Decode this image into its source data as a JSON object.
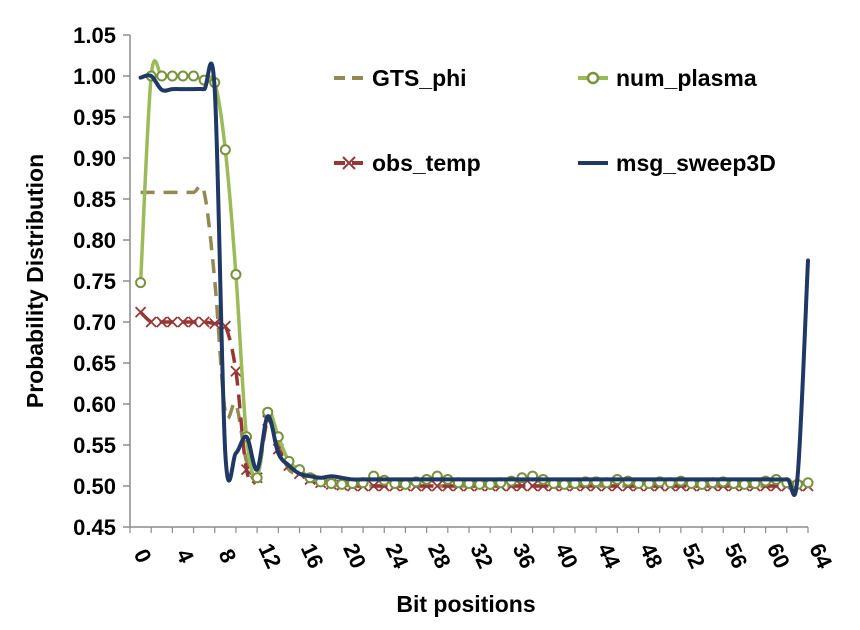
{
  "chart_data": {
    "type": "line",
    "title": "",
    "xlabel": "Bit positions",
    "ylabel": "Probability Distribution",
    "xlim": [
      0,
      64
    ],
    "ylim": [
      0.45,
      1.05
    ],
    "x_ticks": [
      "0",
      "4",
      "8",
      "12",
      "16",
      "20",
      "24",
      "28",
      "32",
      "36",
      "40",
      "44",
      "48",
      "52",
      "56",
      "60",
      "64"
    ],
    "y_ticks": [
      "0.45",
      "0.50",
      "0.55",
      "0.60",
      "0.65",
      "0.70",
      "0.75",
      "0.80",
      "0.85",
      "0.90",
      "0.95",
      "1.00",
      "1.05"
    ],
    "grid": false,
    "legend_position": "top-right",
    "series": [
      {
        "name": "GTS_phi",
        "color": "#938953",
        "style": "dashed",
        "marker": "none",
        "points": [
          [
            1,
            0.858
          ],
          [
            2,
            0.858
          ],
          [
            3,
            0.858
          ],
          [
            4,
            0.858
          ],
          [
            5,
            0.858
          ],
          [
            6,
            0.858
          ],
          [
            7,
            0.858
          ],
          [
            8,
            0.75
          ],
          [
            9,
            0.59
          ],
          [
            10,
            0.6
          ],
          [
            11,
            0.53
          ],
          [
            12,
            0.51
          ],
          [
            13,
            0.58
          ],
          [
            14,
            0.55
          ],
          [
            15,
            0.52
          ],
          [
            16,
            0.515
          ],
          [
            17,
            0.51
          ],
          [
            18,
            0.505
          ],
          [
            19,
            0.502
          ],
          [
            20,
            0.501
          ],
          [
            22,
            0.5
          ],
          [
            24,
            0.5
          ],
          [
            28,
            0.5
          ],
          [
            32,
            0.5
          ],
          [
            36,
            0.5
          ],
          [
            40,
            0.5
          ],
          [
            44,
            0.5
          ],
          [
            48,
            0.5
          ],
          [
            52,
            0.5
          ],
          [
            56,
            0.5
          ],
          [
            60,
            0.5
          ],
          [
            63,
            0.5
          ],
          [
            64,
            0.5
          ]
        ]
      },
      {
        "name": "num_plasma",
        "color": "#9BBB59",
        "style": "solid",
        "marker": "circle",
        "points": [
          [
            1,
            0.748
          ],
          [
            2,
            1.0
          ],
          [
            3,
            1.0
          ],
          [
            4,
            1.0
          ],
          [
            5,
            1.0
          ],
          [
            6,
            1.0
          ],
          [
            7,
            0.995
          ],
          [
            8,
            0.992
          ],
          [
            9,
            0.91
          ],
          [
            10,
            0.758
          ],
          [
            11,
            0.56
          ],
          [
            12,
            0.51
          ],
          [
            13,
            0.59
          ],
          [
            14,
            0.56
          ],
          [
            15,
            0.53
          ],
          [
            16,
            0.52
          ],
          [
            17,
            0.51
          ],
          [
            18,
            0.505
          ],
          [
            19,
            0.503
          ],
          [
            20,
            0.502
          ],
          [
            21,
            0.503
          ],
          [
            22,
            0.504
          ],
          [
            23,
            0.512
          ],
          [
            24,
            0.507
          ],
          [
            25,
            0.503
          ],
          [
            26,
            0.502
          ],
          [
            27,
            0.505
          ],
          [
            28,
            0.508
          ],
          [
            29,
            0.512
          ],
          [
            30,
            0.508
          ],
          [
            31,
            0.504
          ],
          [
            32,
            0.503
          ],
          [
            33,
            0.502
          ],
          [
            34,
            0.502
          ],
          [
            35,
            0.504
          ],
          [
            36,
            0.506
          ],
          [
            37,
            0.51
          ],
          [
            38,
            0.512
          ],
          [
            39,
            0.508
          ],
          [
            40,
            0.503
          ],
          [
            41,
            0.502
          ],
          [
            42,
            0.503
          ],
          [
            43,
            0.505
          ],
          [
            44,
            0.505
          ],
          [
            45,
            0.504
          ],
          [
            46,
            0.508
          ],
          [
            47,
            0.506
          ],
          [
            48,
            0.503
          ],
          [
            49,
            0.503
          ],
          [
            50,
            0.505
          ],
          [
            51,
            0.504
          ],
          [
            52,
            0.506
          ],
          [
            53,
            0.503
          ],
          [
            54,
            0.502
          ],
          [
            55,
            0.504
          ],
          [
            56,
            0.505
          ],
          [
            57,
            0.503
          ],
          [
            58,
            0.502
          ],
          [
            59,
            0.503
          ],
          [
            60,
            0.506
          ],
          [
            61,
            0.508
          ],
          [
            62,
            0.504
          ],
          [
            63,
            0.502
          ],
          [
            64,
            0.504
          ]
        ]
      },
      {
        "name": "obs_temp",
        "color": "#953735",
        "style": "dashed",
        "marker": "x",
        "points": [
          [
            1,
            0.712
          ],
          [
            2,
            0.7
          ],
          [
            3,
            0.7
          ],
          [
            4,
            0.7
          ],
          [
            5,
            0.7
          ],
          [
            6,
            0.7
          ],
          [
            7,
            0.7
          ],
          [
            8,
            0.698
          ],
          [
            9,
            0.695
          ],
          [
            10,
            0.64
          ],
          [
            11,
            0.52
          ],
          [
            12,
            0.51
          ],
          [
            13,
            0.58
          ],
          [
            14,
            0.545
          ],
          [
            15,
            0.525
          ],
          [
            16,
            0.515
          ],
          [
            17,
            0.508
          ],
          [
            18,
            0.504
          ],
          [
            19,
            0.502
          ],
          [
            20,
            0.501
          ],
          [
            21,
            0.5
          ],
          [
            22,
            0.5
          ],
          [
            23,
            0.5
          ],
          [
            24,
            0.5
          ],
          [
            25,
            0.5
          ],
          [
            26,
            0.5
          ],
          [
            27,
            0.5
          ],
          [
            28,
            0.5
          ],
          [
            29,
            0.5
          ],
          [
            30,
            0.5
          ],
          [
            31,
            0.5
          ],
          [
            32,
            0.5
          ],
          [
            33,
            0.5
          ],
          [
            34,
            0.5
          ],
          [
            35,
            0.5
          ],
          [
            36,
            0.5
          ],
          [
            37,
            0.5
          ],
          [
            38,
            0.5
          ],
          [
            39,
            0.5
          ],
          [
            40,
            0.5
          ],
          [
            41,
            0.5
          ],
          [
            42,
            0.5
          ],
          [
            43,
            0.5
          ],
          [
            44,
            0.5
          ],
          [
            45,
            0.5
          ],
          [
            46,
            0.5
          ],
          [
            47,
            0.5
          ],
          [
            48,
            0.5
          ],
          [
            49,
            0.5
          ],
          [
            50,
            0.5
          ],
          [
            51,
            0.5
          ],
          [
            52,
            0.5
          ],
          [
            53,
            0.5
          ],
          [
            54,
            0.5
          ],
          [
            55,
            0.5
          ],
          [
            56,
            0.5
          ],
          [
            57,
            0.5
          ],
          [
            58,
            0.5
          ],
          [
            59,
            0.5
          ],
          [
            60,
            0.5
          ],
          [
            61,
            0.5
          ],
          [
            62,
            0.5
          ],
          [
            63,
            0.5
          ],
          [
            64,
            0.5
          ]
        ]
      },
      {
        "name": "msg_sweep3D",
        "color": "#1F3864",
        "style": "solid",
        "marker": "none",
        "points": [
          [
            1,
            0.998
          ],
          [
            2,
            1.0
          ],
          [
            3,
            0.983
          ],
          [
            4,
            0.984
          ],
          [
            5,
            0.984
          ],
          [
            6,
            0.984
          ],
          [
            7,
            0.984
          ],
          [
            8,
            0.982
          ],
          [
            9,
            0.54
          ],
          [
            10,
            0.54
          ],
          [
            11,
            0.56
          ],
          [
            12,
            0.52
          ],
          [
            13,
            0.585
          ],
          [
            14,
            0.54
          ],
          [
            15,
            0.525
          ],
          [
            16,
            0.515
          ],
          [
            17,
            0.512
          ],
          [
            18,
            0.51
          ],
          [
            19,
            0.512
          ],
          [
            20,
            0.51
          ],
          [
            21,
            0.508
          ],
          [
            22,
            0.508
          ],
          [
            24,
            0.508
          ],
          [
            28,
            0.508
          ],
          [
            32,
            0.508
          ],
          [
            36,
            0.508
          ],
          [
            40,
            0.508
          ],
          [
            44,
            0.508
          ],
          [
            48,
            0.508
          ],
          [
            52,
            0.508
          ],
          [
            56,
            0.508
          ],
          [
            60,
            0.508
          ],
          [
            62,
            0.508
          ],
          [
            63,
            0.509
          ],
          [
            64,
            0.775
          ]
        ]
      }
    ]
  }
}
